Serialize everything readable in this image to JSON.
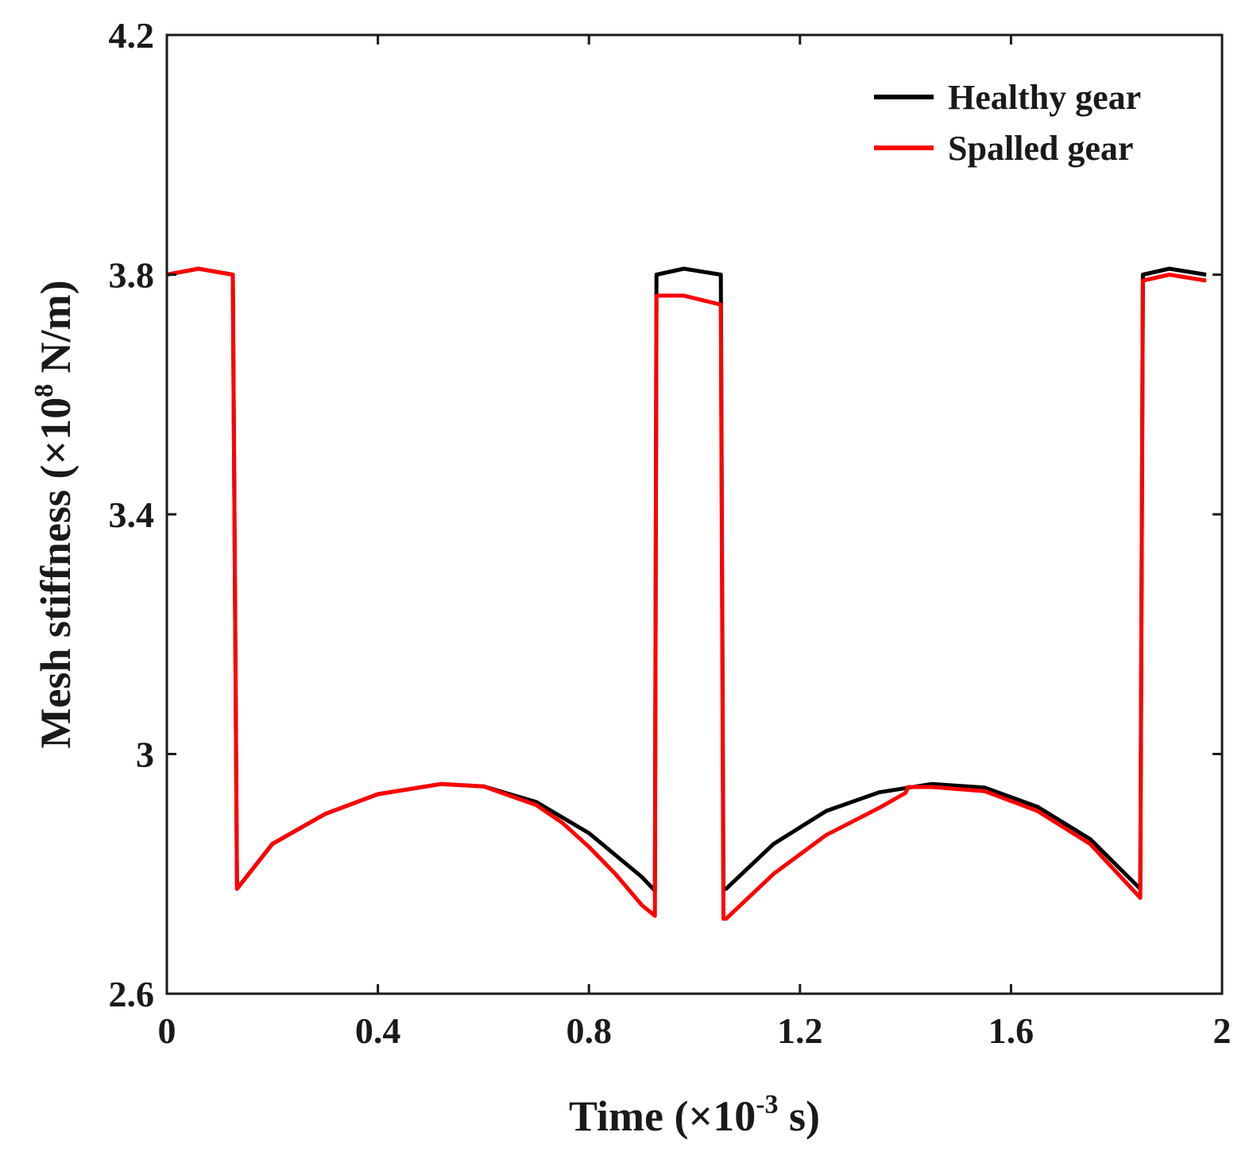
{
  "chart_data": {
    "type": "line",
    "title": "",
    "xlabel": {
      "prefix": "Time (×10",
      "exponent": "-3",
      "suffix": " s)"
    },
    "ylabel": {
      "prefix": "Mesh stiffness (×10",
      "exponent": "8",
      "suffix": " N/m)"
    },
    "xlim": [
      0,
      2
    ],
    "ylim": [
      2.6,
      4.2
    ],
    "xticks": [
      0,
      0.4,
      0.8,
      1.2,
      1.6,
      2
    ],
    "xtick_labels": [
      "0",
      "0.4",
      "0.8",
      "1.2",
      "1.6",
      "2"
    ],
    "yticks": [
      2.6,
      3.0,
      3.4,
      3.8,
      4.2
    ],
    "ytick_labels": [
      "2.6",
      "3",
      "3.4",
      "3.8",
      "4.2"
    ],
    "grid": false,
    "legend_position": "top-right",
    "series": [
      {
        "name": "Healthy gear",
        "color": "#000000",
        "x": [
          0,
          0.06,
          0.125,
          0.133,
          0.2,
          0.3,
          0.4,
          0.52,
          0.6,
          0.7,
          0.8,
          0.9,
          0.925,
          0.928,
          0.98,
          1.05,
          1.055,
          1.06,
          1.15,
          1.25,
          1.35,
          1.45,
          1.55,
          1.65,
          1.75,
          1.845,
          1.85,
          1.9,
          1.97
        ],
        "values": [
          3.8,
          3.81,
          3.8,
          2.775,
          2.85,
          2.9,
          2.933,
          2.95,
          2.946,
          2.92,
          2.868,
          2.795,
          2.772,
          3.8,
          3.81,
          3.8,
          2.775,
          2.775,
          2.85,
          2.905,
          2.936,
          2.95,
          2.944,
          2.912,
          2.858,
          2.775,
          3.8,
          3.81,
          3.8
        ]
      },
      {
        "name": "Spalled gear",
        "color": "#ff0000",
        "x": [
          0,
          0.06,
          0.125,
          0.133,
          0.2,
          0.3,
          0.4,
          0.52,
          0.6,
          0.7,
          0.75,
          0.8,
          0.85,
          0.9,
          0.925,
          0.928,
          0.98,
          1.05,
          1.055,
          1.06,
          1.15,
          1.25,
          1.35,
          1.4,
          1.405,
          1.45,
          1.55,
          1.65,
          1.75,
          1.845,
          1.85,
          1.9,
          1.97
        ],
        "values": [
          3.8,
          3.81,
          3.8,
          2.775,
          2.85,
          2.9,
          2.933,
          2.95,
          2.946,
          2.915,
          2.885,
          2.845,
          2.8,
          2.748,
          2.73,
          3.765,
          3.765,
          3.75,
          2.725,
          2.725,
          2.8,
          2.865,
          2.91,
          2.935,
          2.945,
          2.945,
          2.938,
          2.905,
          2.85,
          2.76,
          3.79,
          3.8,
          3.79
        ]
      }
    ]
  }
}
